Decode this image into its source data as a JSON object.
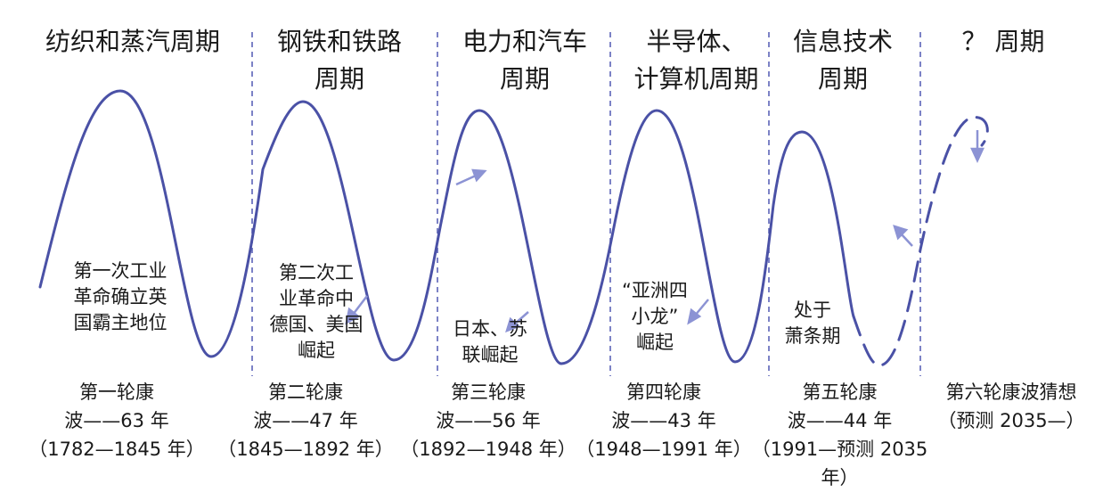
{
  "periods": [
    {
      "title": "纺织和蒸汽周期",
      "event": "第一次工业\n革命确立英\n国霸主地位",
      "wave": "第一轮康\n波——63 年\n（1782—1845 年）"
    },
    {
      "title": "钢铁和铁路\n周期",
      "event": "第二次工\n业革命中\n德国、美国\n崛起",
      "wave": "第二轮康\n波——47 年\n（1845—1892 年）"
    },
    {
      "title": "电力和汽车\n周期",
      "event": "日本、苏\n联崛起",
      "wave": "第三轮康\n波——56 年\n（1892—1948 年）"
    },
    {
      "title": "半导体、\n计算机周期",
      "event": "“亚洲四\n小龙”\n崛起",
      "wave": "第四轮康\n波——43 年\n（1948—1991 年）"
    },
    {
      "title": "信息技术\n周期",
      "event": "处于\n萧条期",
      "wave": "第五轮康\n波——44 年\n（1991—预测 2035 年）"
    },
    {
      "title": "？ 周期",
      "event": "",
      "wave": "第六轮康波猜想\n（预测 2035—）"
    }
  ],
  "colors": {
    "wave": "#4a51a6",
    "divider": "#5b63b8",
    "arrow": "#8c93d4",
    "text": "#1a1a1a"
  }
}
